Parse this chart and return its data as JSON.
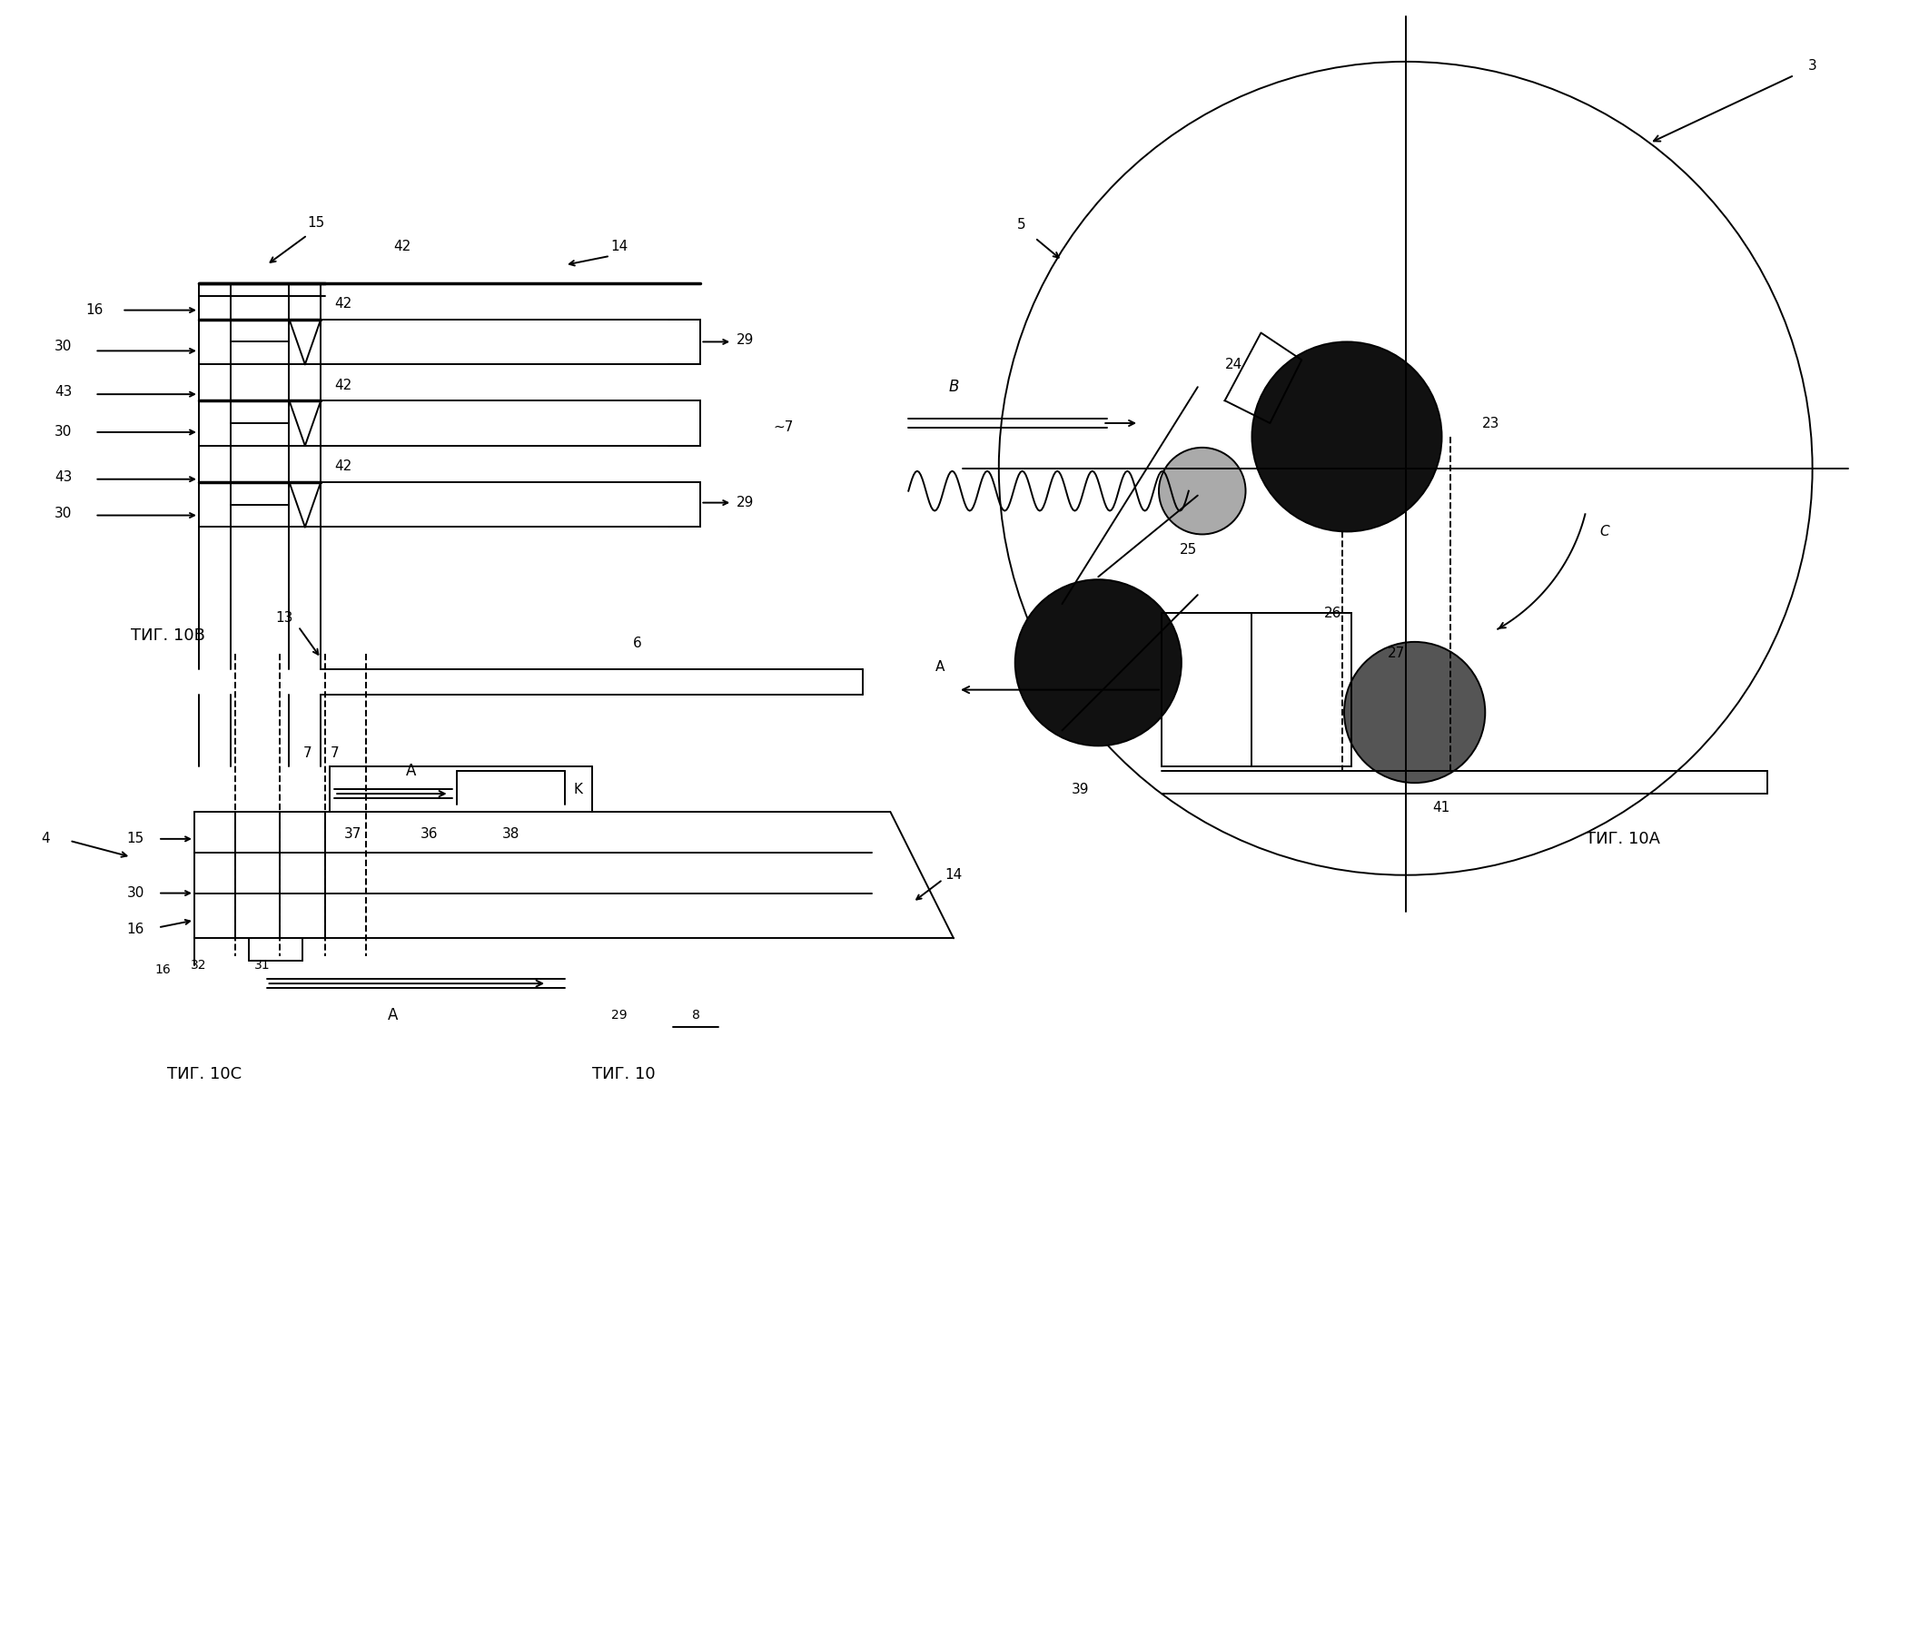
{
  "bg_color": "#ffffff",
  "fig_width": 21.13,
  "fig_height": 17.94,
  "fig10A_label": "ΤИГ. 10A",
  "fig10B_label": "ΤИГ. 10В",
  "fig10C_label": "ΤИГ. 10С",
  "fig10_label": "ΤИГ. 10",
  "lw": 1.4,
  "lwt": 2.5,
  "fs": 11,
  "fs_fig": 13,
  "gear23_color": "#111111",
  "gear41_color": "#555555",
  "gearLL_color": "#111111",
  "gearSm_color": "#aaaaaa"
}
